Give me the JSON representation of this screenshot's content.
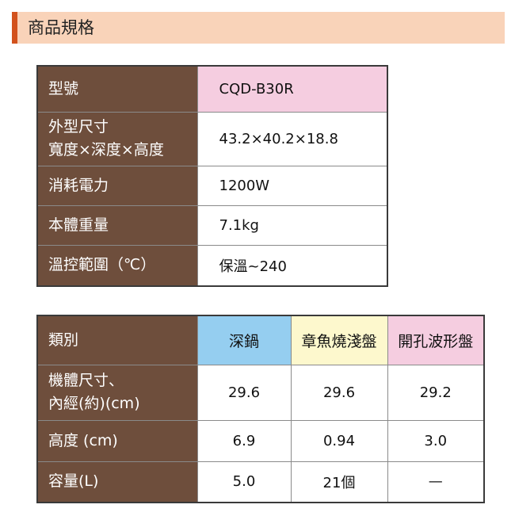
{
  "header": {
    "title": "商品規格"
  },
  "specs": {
    "rows": [
      {
        "label_lines": [
          "型號"
        ],
        "value": "CQD-B30R"
      },
      {
        "label_lines": [
          "外型尺寸",
          "寬度×深度×高度"
        ],
        "value": "43.2×40.2×18.8"
      },
      {
        "label_lines": [
          "消耗電力"
        ],
        "value": "1200W"
      },
      {
        "label_lines": [
          "本體重量"
        ],
        "value": "7.1kg"
      },
      {
        "label_lines": [
          "溫控範圍（℃）"
        ],
        "value": "保溫~240"
      }
    ]
  },
  "compare": {
    "corner": "類別",
    "columns": [
      "深鍋",
      "章魚燒淺盤",
      "開孔波形盤"
    ],
    "rows": [
      {
        "label_lines": [
          "機體尺寸、",
          "內經(約)(cm)"
        ],
        "values": [
          "29.6",
          "29.6",
          "29.2"
        ]
      },
      {
        "label_lines": [
          "高度 (cm)"
        ],
        "values": [
          "6.9",
          "0.94",
          "3.0"
        ]
      },
      {
        "label_lines": [
          "容量(L)"
        ],
        "values": [
          "5.0",
          "21個",
          "—"
        ]
      }
    ]
  },
  "colors": {
    "accent": "#d2521d",
    "header_bg": "#f9d3b9",
    "label_bg": "#6e4e3c",
    "col_blue": "#95cef0",
    "col_yellow": "#fdf8cd",
    "col_pink": "#f5cde0"
  }
}
